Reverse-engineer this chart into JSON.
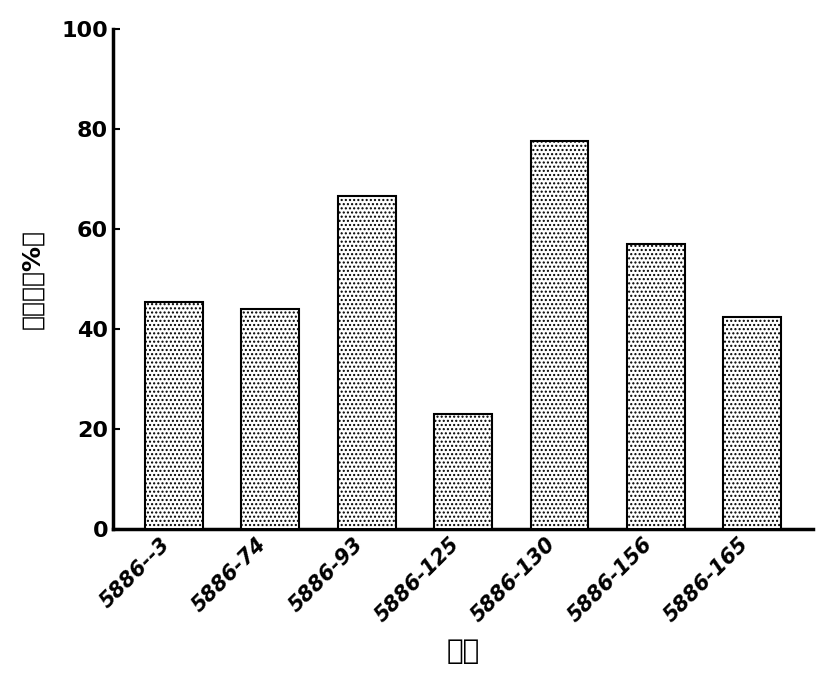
{
  "categories": [
    "5886--3",
    "5886-74",
    "5886-93",
    "5886-125",
    "5886-130",
    "5886-156",
    "5886-165"
  ],
  "values": [
    45.5,
    44.0,
    66.5,
    23.0,
    77.5,
    57.0,
    42.5
  ],
  "hatch_pattern": "....",
  "ylabel": "抑制率（%）",
  "xlabel": "克隆",
  "ylim": [
    0,
    100
  ],
  "yticks": [
    0,
    20,
    40,
    60,
    80,
    100
  ],
  "bar_width": 0.6,
  "background_color": "#ffffff",
  "ylabel_fontsize": 18,
  "xlabel_fontsize": 20,
  "tick_fontsize": 16,
  "xtick_fontsize": 15,
  "spine_linewidth": 2.5,
  "tick_linewidth": 2.0
}
